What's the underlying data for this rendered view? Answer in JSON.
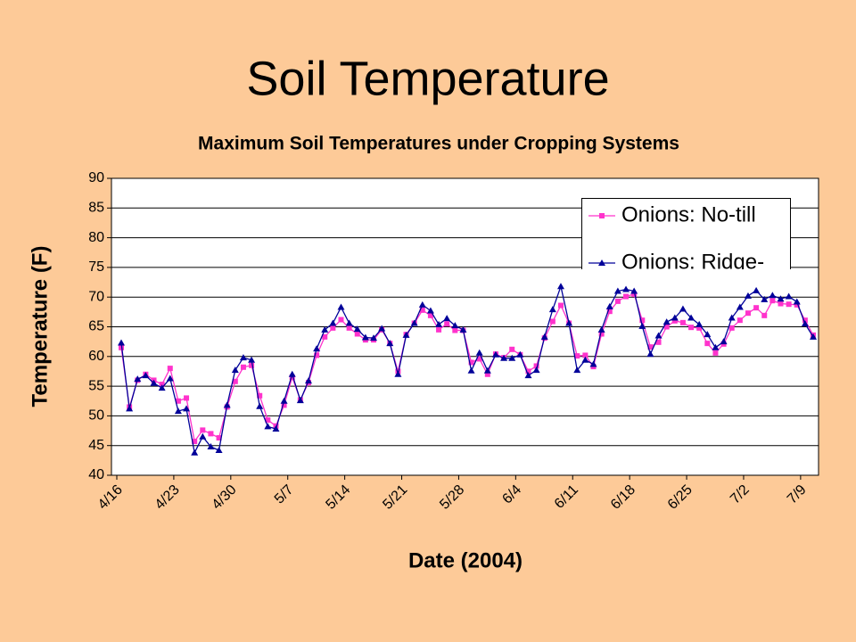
{
  "page_title": "Soil Temperature",
  "chart_data": {
    "type": "line",
    "title": "Maximum Soil Temperatures under Cropping Systems",
    "x_label": "Date (2004)",
    "y_label": "Temperature (F)",
    "categories": [
      "4/16",
      null,
      null,
      null,
      null,
      null,
      null,
      "4/23",
      null,
      null,
      null,
      null,
      null,
      null,
      "4/30",
      null,
      null,
      null,
      null,
      null,
      null,
      "5/7",
      null,
      null,
      null,
      null,
      null,
      null,
      "5/14",
      null,
      null,
      null,
      null,
      null,
      null,
      "5/21",
      null,
      null,
      null,
      null,
      null,
      null,
      "5/28",
      null,
      null,
      null,
      null,
      null,
      null,
      "6/4",
      null,
      null,
      null,
      null,
      null,
      null,
      "6/11",
      null,
      null,
      null,
      null,
      null,
      null,
      "6/18",
      null,
      null,
      null,
      null,
      null,
      null,
      "6/25",
      null,
      null,
      null,
      null,
      null,
      null,
      "7/2",
      null,
      null,
      null,
      null,
      null,
      null,
      "7/9",
      null
    ],
    "series": [
      {
        "name": "Onions: No-till",
        "color": "#ff33cc",
        "marker": "square",
        "values": [
          61.5,
          51.5,
          56,
          57,
          56,
          55.3,
          58,
          52.5,
          53,
          45.7,
          47.6,
          47,
          46.3,
          51.5,
          55.8,
          58.2,
          58.5,
          53.4,
          49.3,
          48.3,
          51.8,
          56.5,
          52.7,
          55.6,
          60.2,
          63.3,
          64.8,
          66.2,
          64.8,
          63.8,
          62.8,
          62.8,
          64.5,
          62.2,
          57.5,
          63.7,
          65.6,
          67.8,
          66.9,
          64.5,
          65.5,
          64.4,
          64.4,
          59,
          59.6,
          57,
          60.4,
          59.8,
          61.2,
          60.3,
          57.5,
          58.4,
          63.1,
          65.9,
          68.6,
          65.6,
          60.1,
          60.2,
          58.3,
          63.8,
          67.6,
          69.3,
          70.1,
          70.5,
          66.1,
          61.6,
          62.4,
          65,
          66,
          65.7,
          64.9,
          64.8,
          62.2,
          60.6,
          62.1,
          64.8,
          66.1,
          67.3,
          68.2,
          66.9,
          69.4,
          68.9,
          68.8,
          68.7,
          66.1,
          63.6
        ]
      },
      {
        "name": "Onions: Ridge-",
        "color": "#000099",
        "marker": "triangle",
        "values": [
          62.3,
          51.2,
          56.2,
          56.8,
          55.5,
          54.7,
          56.3,
          50.8,
          51.2,
          43.8,
          46.5,
          44.8,
          44.2,
          51.8,
          57.7,
          59.8,
          59.4,
          51.6,
          48.2,
          47.8,
          52.5,
          57,
          52.6,
          55.9,
          61.3,
          64.5,
          65.6,
          68.3,
          65.6,
          64.6,
          63.2,
          63.1,
          64.7,
          62.2,
          57,
          63.6,
          65.6,
          68.7,
          67.7,
          65.4,
          66.4,
          65.2,
          64.5,
          57.6,
          60.6,
          57.6,
          60.3,
          59.7,
          59.7,
          60.3,
          56.8,
          57.7,
          63.3,
          67.9,
          71.8,
          65.6,
          57.7,
          59.4,
          58.7,
          64.5,
          68.4,
          71,
          71.3,
          71,
          65.1,
          60.4,
          63.5,
          65.8,
          66.5,
          68,
          66.5,
          65.4,
          63.7,
          61.5,
          62.5,
          66.5,
          68.3,
          70.2,
          71.1,
          69.6,
          70.3,
          69.7,
          70.1,
          69.2,
          65.5,
          63.3
        ]
      }
    ],
    "ylim": [
      40,
      90
    ],
    "yticks": [
      40,
      45,
      50,
      55,
      60,
      65,
      70,
      75,
      80,
      85,
      90
    ],
    "grid": true,
    "legend": "top-right"
  }
}
